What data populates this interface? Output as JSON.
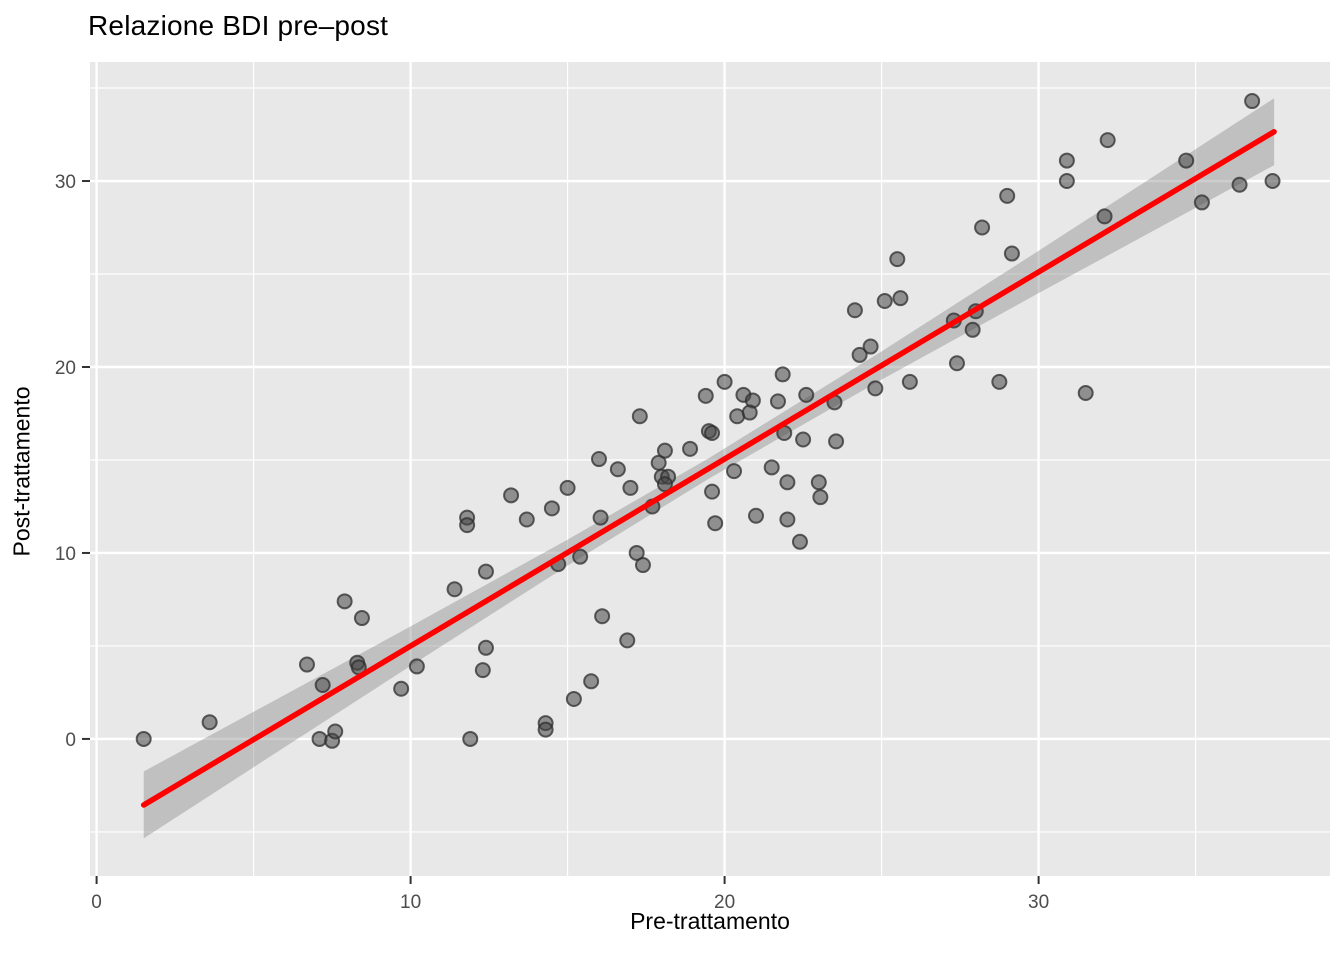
{
  "chart_data": {
    "type": "scatter",
    "title": "Relazione BDI pre–post",
    "xlabel": "Pre-trattamento",
    "ylabel": "Post-trattamento",
    "xlim": [
      -0.21,
      39.28
    ],
    "ylim": [
      -7.37,
      36.4
    ],
    "x_major_ticks": [
      0,
      10,
      20,
      30
    ],
    "x_minor_ticks": [
      5,
      15,
      25,
      35
    ],
    "y_major_ticks": [
      0,
      10,
      20,
      30
    ],
    "y_minor_ticks": [
      -5,
      5,
      15,
      25,
      35
    ],
    "grid": true,
    "legend": false,
    "points": [
      [
        1.5,
        0.0
      ],
      [
        3.6,
        0.9
      ],
      [
        6.7,
        4.0
      ],
      [
        7.2,
        2.9
      ],
      [
        8.3,
        4.1
      ],
      [
        8.35,
        3.85
      ],
      [
        7.1,
        0.0
      ],
      [
        7.5,
        -0.1
      ],
      [
        7.6,
        0.4
      ],
      [
        9.7,
        2.7
      ],
      [
        10.2,
        3.9
      ],
      [
        12.4,
        4.9
      ],
      [
        12.3,
        3.7
      ],
      [
        11.9,
        0.0
      ],
      [
        8.45,
        6.5
      ],
      [
        7.9,
        7.4
      ],
      [
        16.1,
        6.6
      ],
      [
        16.9,
        5.3
      ],
      [
        15.75,
        3.1
      ],
      [
        15.2,
        2.15
      ],
      [
        14.3,
        0.85
      ],
      [
        14.3,
        0.5
      ],
      [
        11.8,
        11.9
      ],
      [
        11.8,
        11.5
      ],
      [
        12.4,
        9.0
      ],
      [
        11.4,
        8.05
      ],
      [
        13.2,
        13.1
      ],
      [
        13.7,
        11.8
      ],
      [
        14.5,
        12.4
      ],
      [
        15.0,
        13.5
      ],
      [
        16.0,
        15.05
      ],
      [
        16.6,
        14.5
      ],
      [
        16.05,
        11.9
      ],
      [
        15.4,
        9.8
      ],
      [
        14.7,
        9.4
      ],
      [
        17.2,
        10.0
      ],
      [
        17.4,
        9.35
      ],
      [
        17.3,
        17.35
      ],
      [
        17.0,
        13.5
      ],
      [
        17.9,
        14.85
      ],
      [
        18.1,
        15.5
      ],
      [
        18.9,
        15.6
      ],
      [
        18.0,
        14.1
      ],
      [
        18.2,
        14.1
      ],
      [
        18.1,
        13.7
      ],
      [
        17.7,
        12.5
      ],
      [
        19.4,
        18.45
      ],
      [
        20.0,
        19.2
      ],
      [
        19.5,
        16.55
      ],
      [
        19.6,
        16.45
      ],
      [
        19.6,
        13.3
      ],
      [
        19.7,
        11.6
      ],
      [
        20.3,
        14.4
      ],
      [
        20.4,
        17.35
      ],
      [
        20.6,
        18.5
      ],
      [
        20.9,
        18.2
      ],
      [
        20.8,
        17.55
      ],
      [
        21.85,
        19.6
      ],
      [
        21.7,
        18.15
      ],
      [
        21.9,
        16.45
      ],
      [
        21.5,
        14.6
      ],
      [
        22.0,
        13.8
      ],
      [
        22.0,
        11.8
      ],
      [
        22.4,
        10.6
      ],
      [
        21.0,
        12.0
      ],
      [
        22.5,
        16.1
      ],
      [
        22.6,
        18.5
      ],
      [
        23.0,
        13.8
      ],
      [
        23.05,
        13.0
      ],
      [
        23.5,
        18.1
      ],
      [
        23.55,
        16.0
      ],
      [
        24.3,
        20.65
      ],
      [
        24.65,
        21.1
      ],
      [
        24.8,
        18.85
      ],
      [
        25.9,
        19.2
      ],
      [
        24.15,
        23.05
      ],
      [
        25.1,
        23.55
      ],
      [
        25.6,
        23.7
      ],
      [
        25.5,
        25.8
      ],
      [
        27.4,
        20.2
      ],
      [
        28.75,
        19.2
      ],
      [
        31.5,
        18.6
      ],
      [
        36.8,
        34.3
      ],
      [
        32.2,
        32.2
      ],
      [
        30.9,
        31.1
      ],
      [
        30.9,
        30.0
      ],
      [
        29.0,
        29.2
      ],
      [
        34.7,
        31.1
      ],
      [
        36.4,
        29.8
      ],
      [
        37.45,
        30.0
      ],
      [
        35.2,
        28.85
      ],
      [
        28.2,
        27.5
      ],
      [
        29.15,
        26.1
      ],
      [
        32.1,
        28.1
      ],
      [
        28.0,
        23.0
      ],
      [
        27.3,
        22.5
      ],
      [
        27.9,
        22.0
      ]
    ],
    "regression_line": {
      "x": [
        1.5,
        37.5
      ],
      "y": [
        -3.55,
        32.65
      ]
    },
    "ci_band": [
      [
        1.5,
        -5.35,
        -1.75
      ],
      [
        5,
        -1.52,
        1.46
      ],
      [
        10,
        3.93,
        6.05
      ],
      [
        15,
        9.32,
        10.72
      ],
      [
        19.5,
        14.0,
        15.1
      ],
      [
        25,
        19.32,
        20.84
      ],
      [
        30,
        23.97,
        26.25
      ],
      [
        34,
        27.64,
        30.62
      ],
      [
        37.5,
        30.85,
        34.45
      ]
    ],
    "colors": {
      "panel_bg": "#E8E8E8",
      "grid": "#FFFFFF",
      "point_fill": "#464646",
      "point_stroke": "#2E2E2E",
      "band": "#7F7F7F",
      "line": "#FF0000",
      "tick_label": "#4D4D4D",
      "tick_mark": "#333333",
      "text": "#000000"
    }
  }
}
